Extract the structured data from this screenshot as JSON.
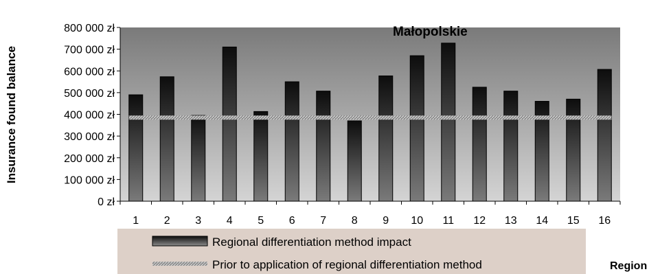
{
  "chart_data": {
    "type": "bar",
    "title": "Małopolskie",
    "xlabel": "Region",
    "ylabel": "Insurance found balance",
    "ylim": [
      0,
      800000
    ],
    "yticks": [
      0,
      100000,
      200000,
      300000,
      400000,
      500000,
      600000,
      700000,
      800000
    ],
    "ytick_labels": [
      "0 zł",
      "100 000 zł",
      "200 000 zł",
      "300 000 zł",
      "400 000 zł",
      "500 000 zł",
      "600 000 zł",
      "700 000 zł",
      "800 000 zł"
    ],
    "categories": [
      "1",
      "2",
      "3",
      "4",
      "5",
      "6",
      "7",
      "8",
      "9",
      "10",
      "11",
      "12",
      "13",
      "14",
      "15",
      "16"
    ],
    "series": [
      {
        "name": "Regional differentiation method impact",
        "kind": "bar",
        "values": [
          490000,
          573000,
          395000,
          710000,
          413000,
          550000,
          507000,
          370000,
          577000,
          670000,
          728000,
          525000,
          507000,
          460000,
          470000,
          607000
        ]
      },
      {
        "name": "Prior to application of regional differentiation method",
        "kind": "line",
        "values": [
          385000,
          385000,
          385000,
          385000,
          385000,
          385000,
          385000,
          385000,
          385000,
          385000,
          385000,
          385000,
          385000,
          385000,
          385000,
          385000
        ]
      }
    ],
    "grid": false,
    "legend_position": "bottom",
    "colors": {
      "plot_bg_top": "#7a7a7a",
      "plot_bg_bottom": "#d4d4d4",
      "bar_top": "#0d0d0d",
      "bar_bottom": "#7a7a7a",
      "baseline_line": "#b0b0b0",
      "legend_bg": "#ddd0c8"
    }
  }
}
